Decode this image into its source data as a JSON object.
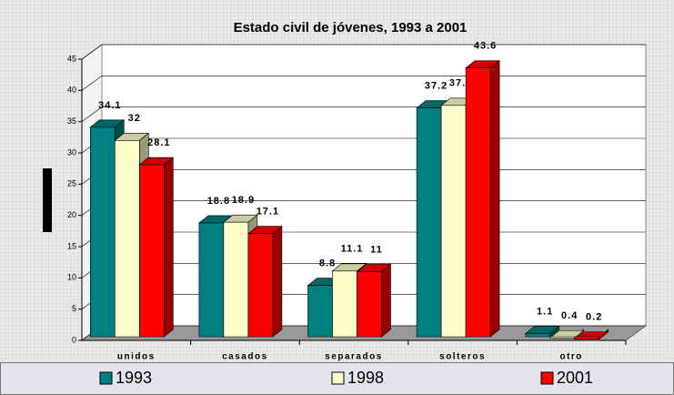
{
  "chart_data": {
    "type": "bar3d",
    "title": "Estado civil de jóvenes, 1993 a 2001",
    "categories": [
      "unidos",
      "casados",
      "separados",
      "solteros",
      "otro"
    ],
    "series": [
      {
        "name": "1993",
        "color": "#008080",
        "values": [
          34.1,
          18.8,
          8.8,
          37.2,
          1.1
        ]
      },
      {
        "name": "1998",
        "color": "#ffffcc",
        "values": [
          32,
          18.9,
          11.1,
          37.6,
          0.4
        ]
      },
      {
        "name": "2001",
        "color": "#ff0000",
        "values": [
          28.1,
          17.1,
          11,
          43.6,
          0.2
        ]
      }
    ],
    "ylim": [
      0,
      45
    ],
    "yticks": [
      0,
      5,
      10,
      15,
      20,
      25,
      30,
      35,
      40,
      45
    ],
    "grid": true,
    "legend": "bottom"
  }
}
